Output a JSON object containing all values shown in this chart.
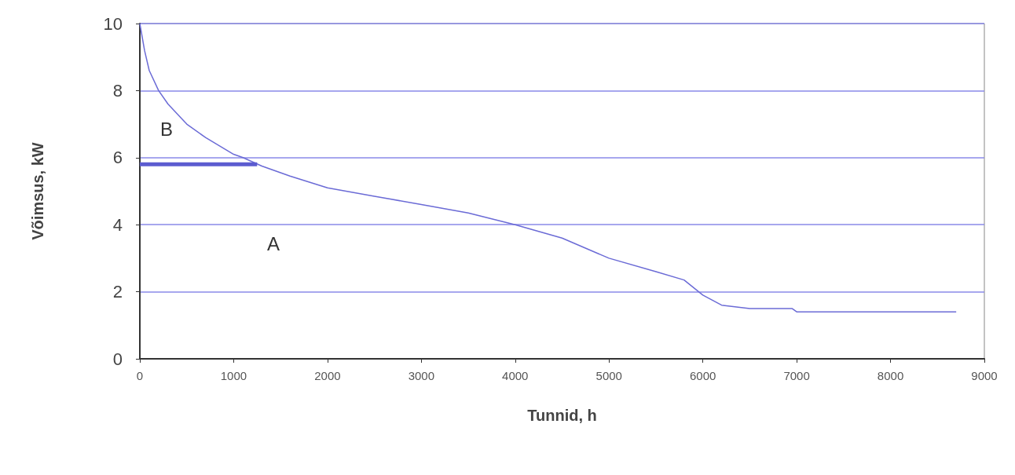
{
  "chart_data": {
    "type": "line",
    "xlabel": "Tunnid, h",
    "ylabel": "Võimsus, kW",
    "xlim": [
      0,
      9000
    ],
    "xticks": [
      0,
      1000,
      2000,
      3000,
      4000,
      5000,
      6000,
      7000,
      8000,
      9000
    ],
    "ylim": [
      0,
      10
    ],
    "yticks": [
      0,
      2,
      4,
      6,
      8,
      10
    ],
    "grid": "y",
    "marker": "none",
    "line_style": "solid",
    "series": [
      {
        "color": "#6b6bd6",
        "x": [
          0,
          50,
          100,
          200,
          300,
          500,
          700,
          1000,
          1100,
          1300,
          1600,
          2000,
          2500,
          3000,
          3500,
          4000,
          4500,
          5000,
          5500,
          5800,
          6000,
          6200,
          6500,
          6950,
          7000,
          8700
        ],
        "values": [
          10,
          9.2,
          8.6,
          8.0,
          7.6,
          7.0,
          6.6,
          6.1,
          6.0,
          5.75,
          5.45,
          5.1,
          4.85,
          4.6,
          4.35,
          4.0,
          3.6,
          3.0,
          2.6,
          2.35,
          1.9,
          1.6,
          1.5,
          1.5,
          1.4,
          1.4
        ]
      },
      {
        "color": "#5c5cd0",
        "x": [
          0,
          1250
        ],
        "values": [
          5.8,
          5.8
        ]
      }
    ],
    "annotations": [
      "B",
      "A"
    ]
  }
}
